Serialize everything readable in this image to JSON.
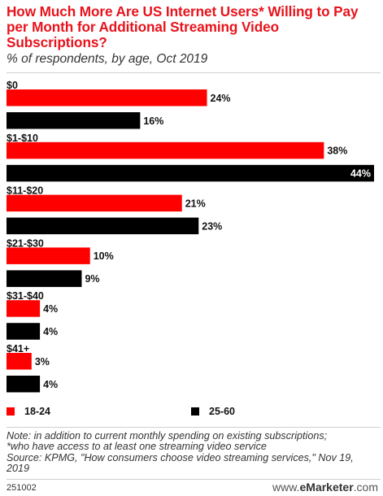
{
  "header": {
    "title_lines": [
      "How Much More Are US Internet Users* Willing to Pay",
      "per Month for Additional Streaming Video",
      "Subscriptions?"
    ],
    "subtitle": "% of respondents, by age, Oct 2019"
  },
  "chart_data": {
    "type": "bar",
    "orientation": "horizontal",
    "categories": [
      "$0",
      "$1-$10",
      "$11-$20",
      "$21-$30",
      "$31-$40",
      "$41+"
    ],
    "series": [
      {
        "name": "18-24",
        "color": "#ff0000",
        "values": [
          24,
          38,
          21,
          10,
          4,
          3
        ]
      },
      {
        "name": "25-60",
        "color": "#000000",
        "values": [
          16,
          44,
          23,
          9,
          4,
          4
        ]
      }
    ],
    "value_format": "%",
    "xlim": [
      0,
      44
    ],
    "legend_position": "bottom",
    "grid": false
  },
  "legend": [
    {
      "label": "18-24",
      "color": "#ff0000"
    },
    {
      "label": "25-60",
      "color": "#000000"
    }
  ],
  "notes": {
    "lines": [
      "Note: in addition to current monthly spending on existing subscriptions;",
      "*who have access to at least one streaming video service",
      "Source: KPMG, \"How consumers choose video streaming services,\" Nov 19,",
      "2019"
    ]
  },
  "footer": {
    "id": "251002",
    "brand_prefix": "www.",
    "brand_name": "eMarketer",
    "brand_suffix": ".com"
  }
}
